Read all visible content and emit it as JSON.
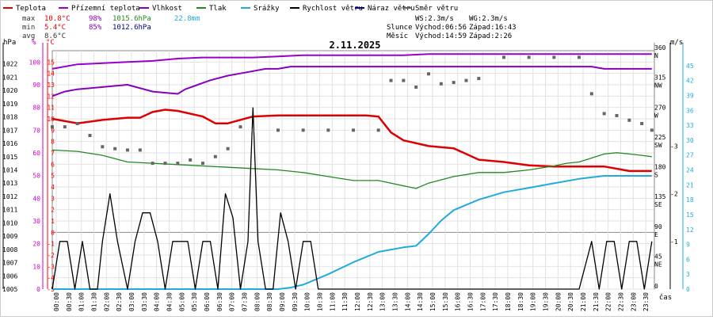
{
  "chart_data": {
    "type": "line",
    "title": "2.11.2025",
    "legend": [
      {
        "label": "Teplota",
        "color": "#dd0000"
      },
      {
        "label": "Přízemní teplota",
        "color": "#9900cc"
      },
      {
        "label": "Vlhkost",
        "color": "#8800bb"
      },
      {
        "label": "Tlak",
        "color": "#228822"
      },
      {
        "label": "Srážky",
        "color": "#22aadd"
      },
      {
        "label": "Rychlost větru",
        "color": "#000000"
      },
      {
        "label": "Náraz větru",
        "color": "#000088"
      },
      {
        "label": "Směr větru",
        "color": "#666666"
      }
    ],
    "stats": {
      "max": {
        "label": "max",
        "temp": "10.8°C",
        "hum": "98%",
        "press": "1015.6hPa",
        "rain": "22.8mm"
      },
      "min": {
        "label": "min",
        "temp": "5.4°C",
        "hum": "85%",
        "press": "1012.6hPa"
      },
      "avg": {
        "label": "avg",
        "temp": "8.6°C"
      }
    },
    "info": {
      "ws": "WS:2.3m/s",
      "wg": "WG:2.3m/s",
      "sun_label": "Slunce",
      "sunrise": "Východ:06:56",
      "sunset": "Západ:16:43",
      "moon_label": "Měsíc",
      "moonrise": "Východ:14:59",
      "moonset": "Západ:2:26"
    },
    "axes": {
      "hpa": {
        "unit": "hPa",
        "range": [
          1005,
          1023
        ],
        "ticks": [
          1005,
          1006,
          1007,
          1008,
          1009,
          1010,
          1011,
          1012,
          1013,
          1014,
          1015,
          1016,
          1017,
          1018,
          1019,
          1020,
          1021,
          1022
        ]
      },
      "pct": {
        "unit": "%",
        "range": [
          0,
          105
        ],
        "ticks": [
          0,
          10,
          20,
          30,
          40,
          50,
          60,
          70,
          80,
          90,
          100
        ]
      },
      "temp": {
        "unit": "°C",
        "range": [
          -5,
          16
        ],
        "ticks": [
          -5,
          -4,
          -3,
          -2,
          -1,
          0,
          1,
          2,
          3,
          4,
          5,
          6,
          7,
          8,
          9,
          10,
          11,
          12,
          13,
          14,
          15
        ]
      },
      "dir": {
        "range": [
          0,
          360
        ],
        "ticks": [
          {
            "v": 360,
            "deg": "360",
            "name": "N"
          },
          {
            "v": 315,
            "deg": "315",
            "name": "NW"
          },
          {
            "v": 270,
            "deg": "270",
            "name": "W"
          },
          {
            "v": 225,
            "deg": "225",
            "name": "SW"
          },
          {
            "v": 180,
            "deg": "180",
            "name": "S"
          },
          {
            "v": 135,
            "deg": "135",
            "name": "SE"
          },
          {
            "v": 90,
            "deg": "90",
            "name": "E"
          },
          {
            "v": 45,
            "deg": "45",
            "name": "NE"
          },
          {
            "v": 0,
            "deg": "0",
            "name": ""
          }
        ]
      },
      "ms": {
        "unit": "m/s",
        "range": [
          0,
          5
        ],
        "ticks": [
          1,
          2,
          3
        ]
      },
      "mm": {
        "range": [
          0,
          48
        ],
        "ticks": [
          0,
          3,
          6,
          9,
          12,
          15,
          18,
          21,
          24,
          27,
          30,
          33,
          36,
          39,
          42,
          45
        ]
      },
      "x_label": "čas",
      "x_ticks": [
        "00:00",
        "00:30",
        "01:00",
        "01:30",
        "02:00",
        "02:30",
        "03:00",
        "03:30",
        "04:00",
        "04:30",
        "05:00",
        "05:30",
        "06:00",
        "06:30",
        "07:00",
        "07:30",
        "08:00",
        "08:30",
        "09:00",
        "09:30",
        "10:00",
        "10:30",
        "11:00",
        "11:30",
        "12:00",
        "12:30",
        "13:00",
        "13:30",
        "14:00",
        "14:30",
        "15:00",
        "15:30",
        "16:00",
        "16:30",
        "17:00",
        "17:30",
        "18:00",
        "18:30",
        "19:00",
        "19:30",
        "20:00",
        "20:30",
        "21:00",
        "21:30",
        "22:00",
        "22:30",
        "23:00",
        "23:30"
      ]
    },
    "series": [
      {
        "name": "Teplota",
        "unit": "°C",
        "x": [
          0,
          1,
          2,
          3,
          3.5,
          4,
          4.5,
          5,
          6,
          6.5,
          7,
          8,
          9,
          10,
          11,
          12,
          12.5,
          13,
          13.5,
          14,
          15,
          16,
          16.5,
          17,
          18,
          19,
          20,
          21,
          22,
          23,
          23.9
        ],
        "values": [
          10,
          9.6,
          9.9,
          10.1,
          10.1,
          10.6,
          10.8,
          10.7,
          10.2,
          9.6,
          9.6,
          10.2,
          10.3,
          10.3,
          10.3,
          10.3,
          10.3,
          10.2,
          8.8,
          8.1,
          7.6,
          7.4,
          6.9,
          6.4,
          6.2,
          5.9,
          5.8,
          5.8,
          5.8,
          5.4,
          5.4
        ]
      },
      {
        "name": "Přízemní teplota",
        "unit": "°C",
        "x": [
          0,
          1,
          2,
          3,
          4,
          5,
          6,
          7,
          8,
          9,
          10,
          11,
          12,
          13,
          14,
          15,
          16,
          17,
          18,
          19,
          20,
          21,
          22,
          23,
          23.9
        ],
        "values": [
          14.4,
          14.8,
          14.9,
          15.0,
          15.1,
          15.3,
          15.4,
          15.4,
          15.4,
          15.5,
          15.6,
          15.6,
          15.6,
          15.6,
          15.6,
          15.7,
          15.7,
          15.7,
          15.7,
          15.7,
          15.7,
          15.7,
          15.7,
          15.7,
          15.7
        ]
      },
      {
        "name": "Vlhkost",
        "unit": "%",
        "x": [
          0,
          0.5,
          1,
          2,
          3,
          4,
          5,
          5.3,
          5.8,
          6.3,
          7,
          7.5,
          8,
          8.5,
          9,
          9.5,
          10,
          11,
          12,
          13,
          14,
          15,
          16,
          17,
          18,
          19,
          20,
          21,
          21.5,
          22,
          23,
          23.9
        ],
        "values": [
          85,
          87,
          88,
          89,
          90,
          87,
          86,
          88,
          90,
          92,
          94,
          95,
          96,
          97,
          97,
          98,
          98,
          98,
          98,
          98,
          98,
          98,
          98,
          98,
          98,
          98,
          98,
          98,
          98,
          97,
          97,
          97
        ]
      },
      {
        "name": "Tlak",
        "unit": "hPa",
        "x": [
          0,
          1,
          2,
          3,
          4,
          5,
          6,
          7,
          8,
          9,
          10,
          11,
          12,
          13,
          14,
          14.5,
          15,
          16,
          17,
          18,
          19,
          20,
          20.5,
          21,
          21.5,
          22,
          22.5,
          23,
          23.5,
          23.9
        ],
        "values": [
          1015.5,
          1015.4,
          1015.1,
          1014.6,
          1014.5,
          1014.4,
          1014.3,
          1014.2,
          1014.1,
          1014.0,
          1013.8,
          1013.5,
          1013.2,
          1013.2,
          1012.8,
          1012.6,
          1013.0,
          1013.5,
          1013.8,
          1013.8,
          1014.0,
          1014.3,
          1014.5,
          1014.6,
          1014.9,
          1015.2,
          1015.3,
          1015.2,
          1015.1,
          1015.0
        ]
      },
      {
        "name": "Srážky",
        "unit": "mm",
        "x": [
          0,
          8,
          9,
          9.5,
          10,
          11,
          12,
          13,
          14,
          14.5,
          15,
          15.5,
          16,
          17,
          18,
          19,
          20,
          21,
          22,
          23,
          23.9
        ],
        "values": [
          0,
          0,
          0,
          0.3,
          0.9,
          3.0,
          5.4,
          7.5,
          8.4,
          8.7,
          11.1,
          13.8,
          15.9,
          18.0,
          19.5,
          20.4,
          21.3,
          22.2,
          22.8,
          22.8,
          22.8
        ]
      },
      {
        "name": "Rychlost větru",
        "unit": "m/s",
        "x": [
          0,
          0.3,
          0.6,
          0.9,
          1.2,
          1.5,
          1.8,
          2.0,
          2.3,
          2.6,
          3.0,
          3.3,
          3.6,
          3.9,
          4.2,
          4.5,
          4.8,
          5.1,
          5.4,
          5.7,
          6.0,
          6.3,
          6.6,
          6.9,
          7.2,
          7.5,
          7.8,
          8.0,
          8.2,
          8.5,
          8.8,
          9.1,
          9.4,
          9.7,
          10.0,
          10.3,
          10.6,
          11.0,
          11.5,
          12.0,
          12.5,
          13.0,
          13.5,
          14.0,
          14.5,
          15.0,
          15.5,
          16.0,
          17.0,
          18.0,
          19.0,
          20.0,
          21.0,
          21.5,
          21.8,
          22.1,
          22.4,
          22.7,
          23.0,
          23.3,
          23.6,
          23.9
        ],
        "values": [
          0,
          1,
          1,
          0,
          1,
          0,
          0,
          1,
          2,
          1,
          0,
          1,
          1.6,
          1.6,
          1,
          0,
          1,
          1,
          1,
          0,
          1,
          1,
          0,
          2,
          1.5,
          0,
          1,
          3.8,
          1,
          0,
          0,
          1.6,
          1,
          0,
          1,
          1,
          0,
          0,
          0,
          0,
          0,
          0,
          0,
          0,
          0,
          0,
          0,
          0,
          0,
          0,
          0,
          0,
          0,
          1,
          0,
          1,
          1,
          0,
          1,
          1,
          0,
          1
        ]
      },
      {
        "name": "Směr větru",
        "unit": "°",
        "x": [
          0,
          0.5,
          1,
          1.5,
          2,
          2.5,
          3,
          3.5,
          4,
          4.5,
          5,
          5.5,
          6,
          6.5,
          7,
          7.5,
          8,
          9,
          10,
          11,
          12,
          13,
          13.5,
          14,
          14.5,
          15,
          15.5,
          16,
          16.5,
          17,
          18,
          19,
          20,
          21,
          21.5,
          22,
          22.5,
          23,
          23.5,
          23.9
        ],
        "values": [
          245,
          245,
          250,
          232,
          215,
          212,
          210,
          210,
          190,
          190,
          190,
          195,
          190,
          200,
          212,
          245,
          240,
          240,
          240,
          240,
          240,
          240,
          315,
          315,
          305,
          325,
          310,
          312,
          315,
          318,
          350,
          350,
          350,
          350,
          295,
          265,
          262,
          255,
          250,
          240
        ]
      }
    ]
  }
}
